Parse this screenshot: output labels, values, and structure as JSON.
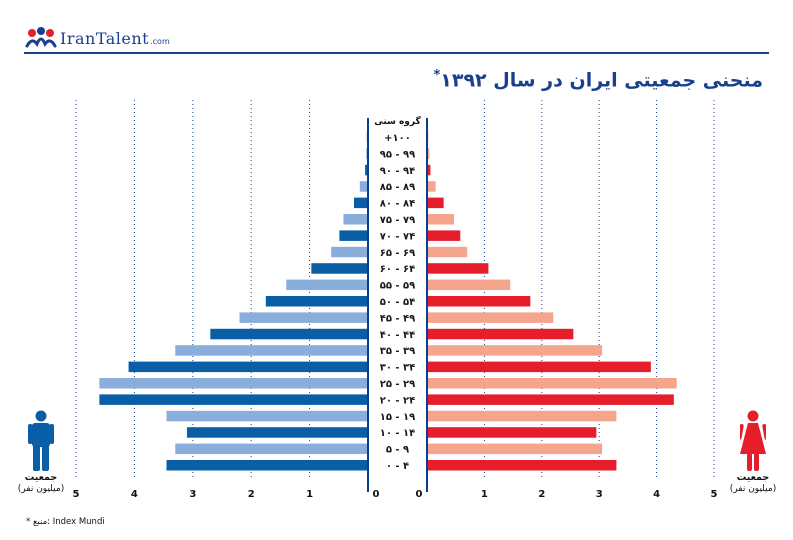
{
  "brand": {
    "name": "IranTalent",
    "suffix": ".com"
  },
  "title": "منحنی جمعیتی ایران در سال ۱۳۹۲",
  "title_marker": "*",
  "source_note": "* منبع: Index Mundi",
  "left_axis_title": {
    "line1": "جمعیت",
    "line2": "(میلیون نفر)"
  },
  "right_axis_title": {
    "line1": "جمعیت",
    "line2": "(میلیون نفر)"
  },
  "colors": {
    "male_dark": "#0a5ea6",
    "male_light": "#8aaedb",
    "female_dark": "#e61e2b",
    "female_light": "#f4a58c",
    "brand_blue": "#1a3f8f",
    "center_line": "#0a3f8f",
    "grid": "#1a3f8f"
  },
  "icons": [
    "male-person-icon",
    "female-person-icon",
    "irantalent-logo-icon"
  ],
  "chart_data": {
    "type": "bar",
    "orientation": "horizontal-population-pyramid",
    "title": "منحنی جمعیتی ایران در سال ۱۳۹۲",
    "category_header": "گروه سنی",
    "categories": [
      "۰ - ۴",
      "۵ - ۹",
      "۱۰ - ۱۴",
      "۱۵ - ۱۹",
      "۲۰ - ۲۴",
      "۲۵ - ۲۹",
      "۳۰ - ۳۴",
      "۳۵ - ۳۹",
      "۴۰ - ۴۴",
      "۴۵ - ۴۹",
      "۵۰ - ۵۴",
      "۵۵ - ۵۹",
      "۶۰ - ۶۴",
      "۶۵ - ۶۹",
      "۷۰ - ۷۴",
      "۷۵ - ۷۹",
      "۸۰ - ۸۴",
      "۸۵ - ۸۹",
      "۹۰ - ۹۴",
      "۹۵ - ۹۹",
      "+۱۰۰"
    ],
    "series": [
      {
        "name": "male",
        "side": "left",
        "values": [
          3.45,
          3.3,
          3.1,
          3.45,
          4.6,
          4.6,
          4.1,
          3.3,
          2.7,
          2.2,
          1.75,
          1.4,
          0.97,
          0.63,
          0.49,
          0.42,
          0.24,
          0.14,
          0.05,
          0.03,
          0.02
        ]
      },
      {
        "name": "female",
        "side": "right",
        "values": [
          3.3,
          3.05,
          2.95,
          3.3,
          4.3,
          4.35,
          3.9,
          3.05,
          2.55,
          2.2,
          1.8,
          1.45,
          1.07,
          0.7,
          0.58,
          0.47,
          0.29,
          0.15,
          0.06,
          0.04,
          0.02
        ]
      }
    ],
    "x_ticks": [
      "0",
      "1",
      "2",
      "3",
      "4",
      "5"
    ],
    "x_unit": "میلیون نفر",
    "xlim": [
      0,
      5
    ],
    "bar_color_pattern": "alternating dark/light per age group"
  }
}
